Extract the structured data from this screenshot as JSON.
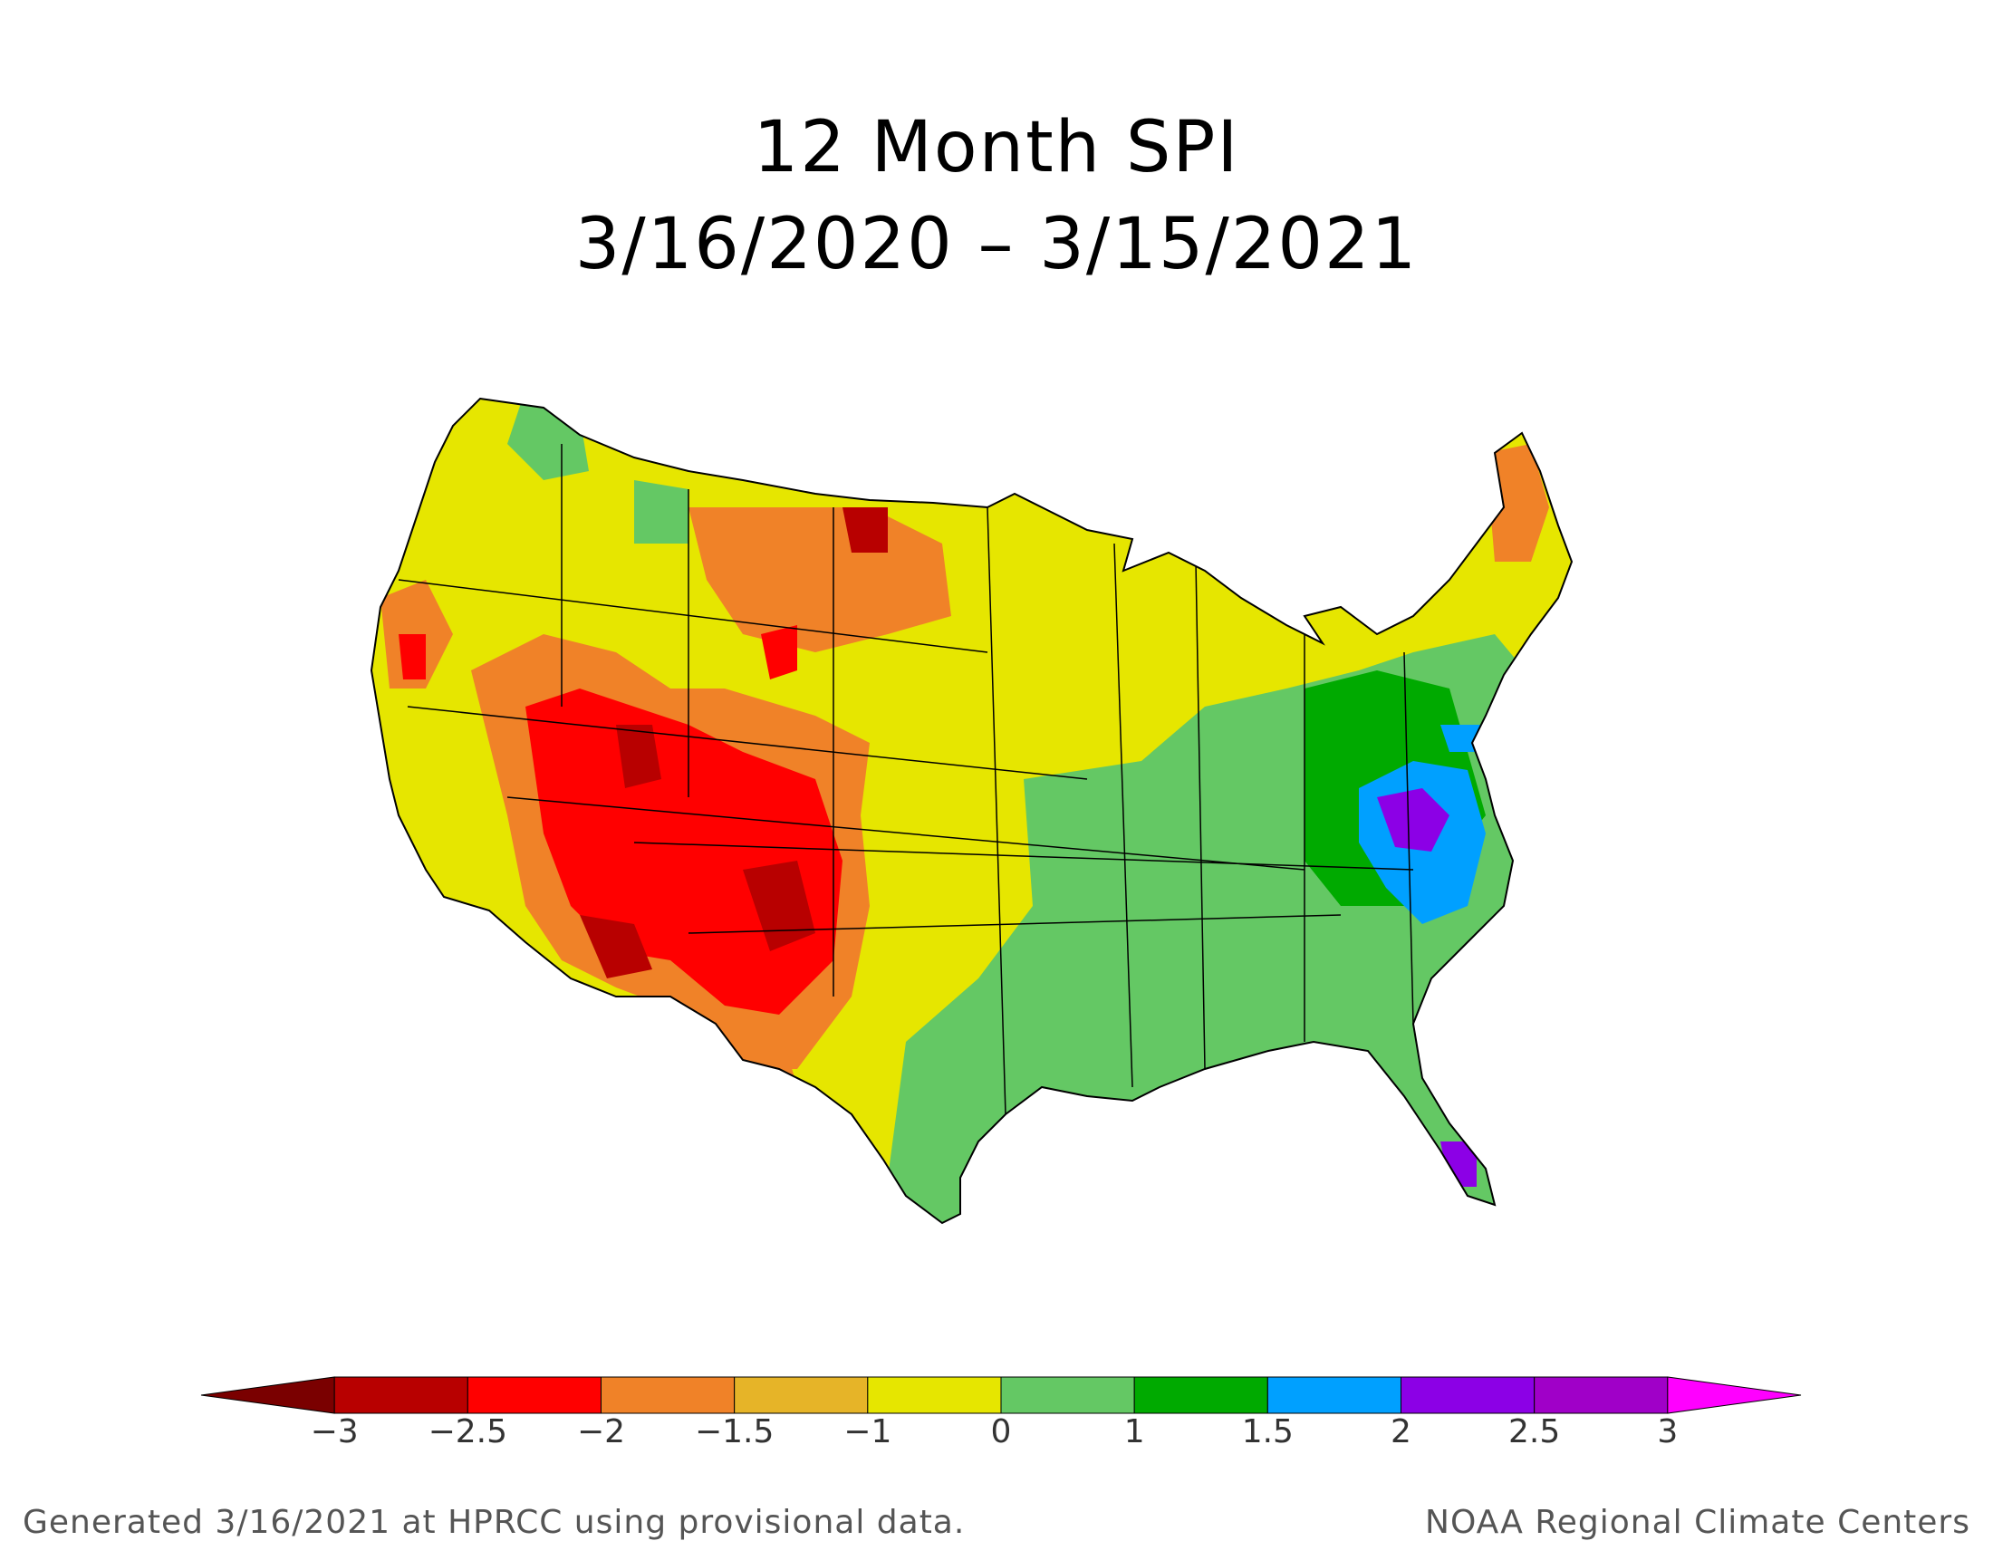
{
  "title": "12 Month SPI",
  "period": "3/16/2020 – 3/15/2021",
  "footer_left": "Generated 3/16/2021 at HPRCC using provisional data.",
  "footer_right": "NOAA Regional Climate Centers",
  "colorbar": {
    "ticks": [
      "−3",
      "−2.5",
      "−2",
      "−1.5",
      "−1",
      "0",
      "1",
      "1.5",
      "2",
      "2.5",
      "3"
    ],
    "colors": [
      "#7a0000",
      "#b80000",
      "#ff0000",
      "#f08228",
      "#e6b428",
      "#e6e600",
      "#64c864",
      "#00aa00",
      "#00a0ff",
      "#8c00e6",
      "#a000c8",
      "#ff00ff"
    ]
  },
  "regions": {
    "southwest_drought": "#ff0000",
    "extreme": "#b80000",
    "plains": "#e6e600",
    "midwest_south": "#64c864",
    "mid_atlantic_wet": "#00a0ff",
    "very_wet": "#8c00e6"
  }
}
